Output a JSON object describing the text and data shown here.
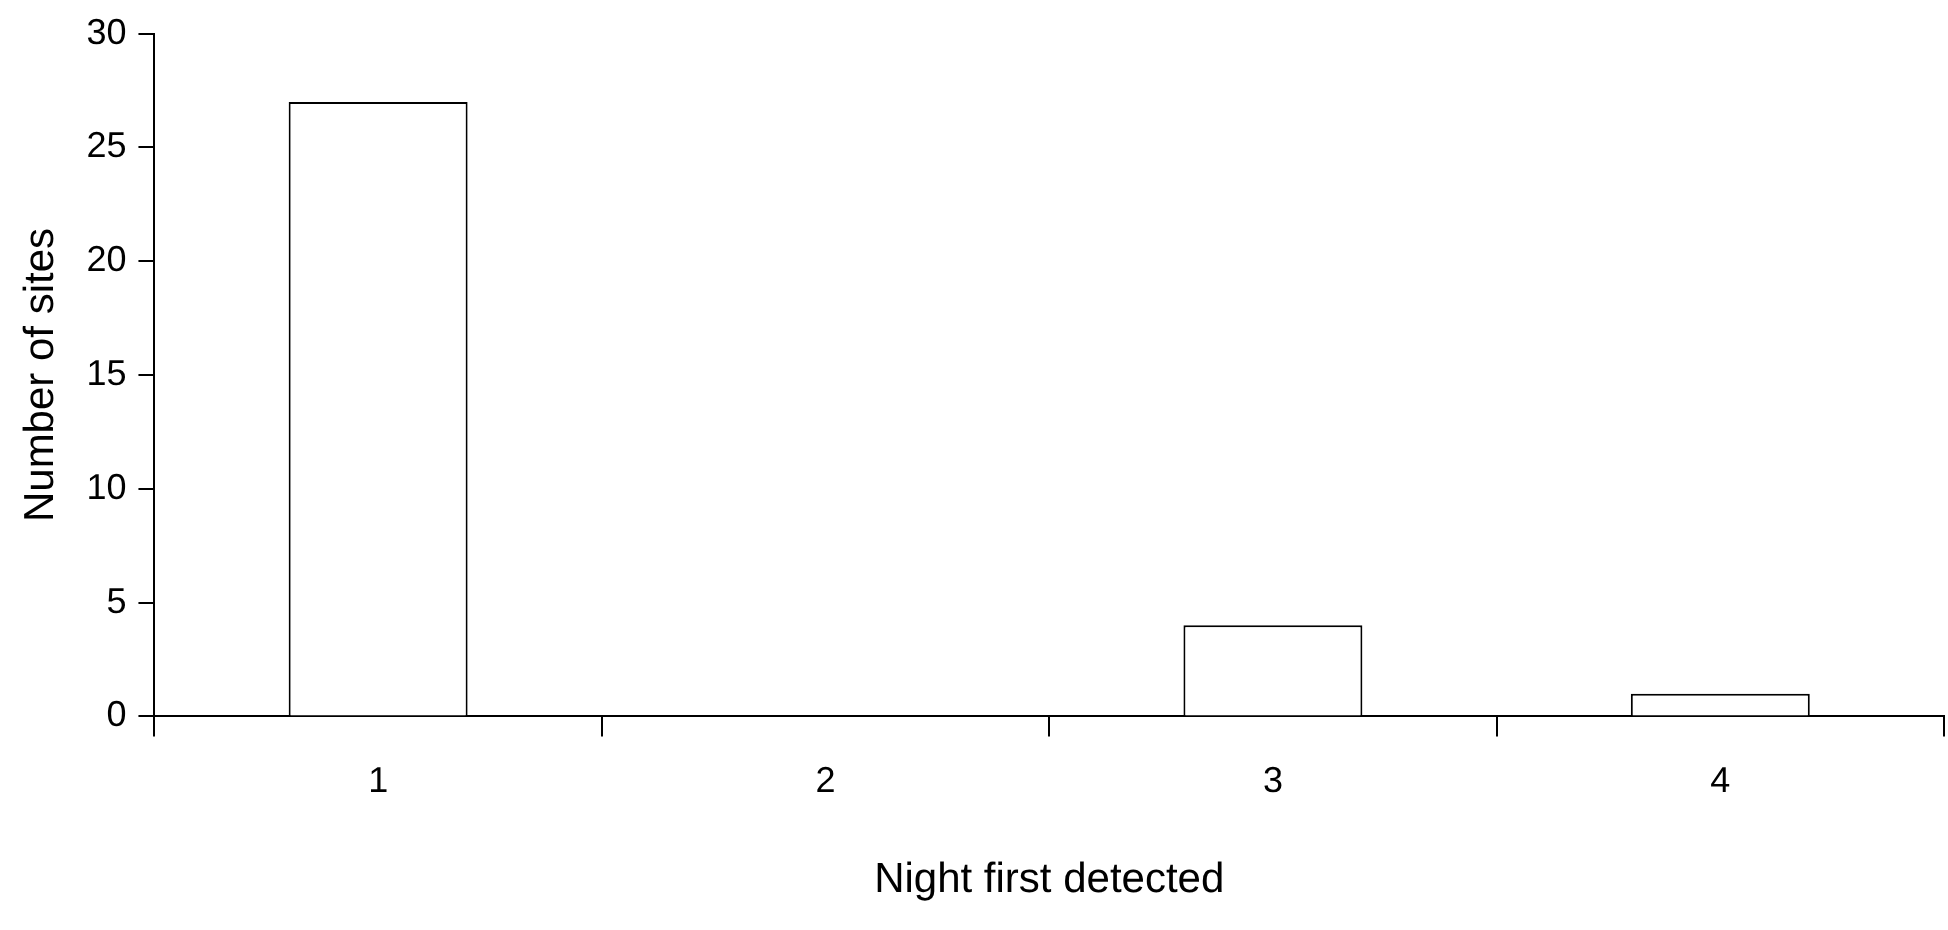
{
  "chart_data": {
    "type": "bar",
    "xlabel": "Night first detected",
    "ylabel": "Number of sites",
    "categories": [
      "1",
      "2",
      "3",
      "4"
    ],
    "values": [
      27,
      0,
      4,
      1
    ],
    "color": "#ffffff",
    "ylim": [
      0,
      30
    ],
    "yticks": [
      0,
      5,
      10,
      15,
      20,
      25,
      30
    ],
    "grid": false,
    "legend": false
  }
}
